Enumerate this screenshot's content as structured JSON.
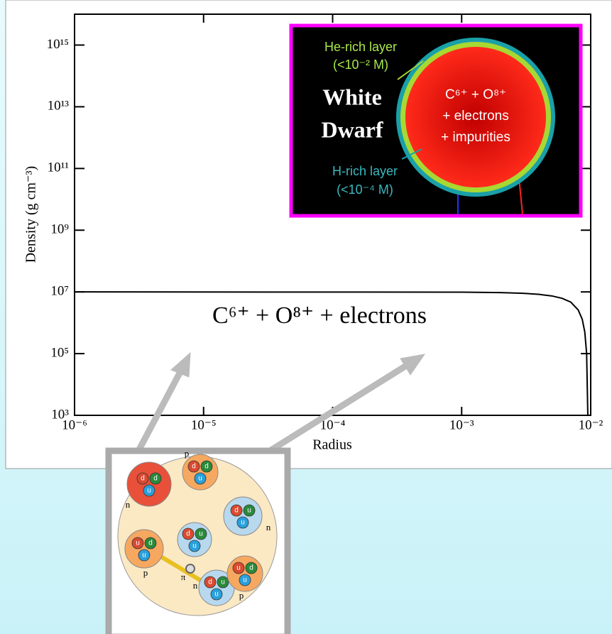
{
  "chart_data": {
    "type": "line",
    "xlabel": "Radius",
    "ylabel": "Density (g cm⁻³)",
    "xscale": "log",
    "yscale": "log",
    "xlim": [
      1e-06,
      0.01
    ],
    "ylim": [
      1000,
      10000000000000000
    ],
    "xticks": [
      {
        "value": 1e-06,
        "label": "10⁻⁶"
      },
      {
        "value": 1e-05,
        "label": "10⁻⁵"
      },
      {
        "value": 0.0001,
        "label": "10⁻⁴"
      },
      {
        "value": 0.001,
        "label": "10⁻³"
      },
      {
        "value": 0.01,
        "label": "10⁻²"
      }
    ],
    "yticks": [
      {
        "value": 1000,
        "label": "10³"
      },
      {
        "value": 100000,
        "label": "10⁵"
      },
      {
        "value": 10000000,
        "label": "10⁷"
      },
      {
        "value": 1000000000,
        "label": "10⁹"
      },
      {
        "value": 100000000000,
        "label": "10¹¹"
      },
      {
        "value": 10000000000000,
        "label": "10¹³"
      },
      {
        "value": 1000000000000000,
        "label": "10¹⁵"
      }
    ],
    "series": [
      {
        "color": "#000000",
        "x": [
          1e-06,
          0.001,
          0.002,
          0.003,
          0.004,
          0.005,
          0.006,
          0.007,
          0.008,
          0.0086,
          0.009,
          0.0093,
          0.0095
        ],
        "values": [
          10000000,
          9800000,
          9500000,
          9000000,
          8300000,
          7400000,
          6200000,
          4700000,
          2600000,
          1300000,
          500000,
          100000,
          1000
        ]
      }
    ],
    "annotation": "C⁶⁺ + O⁸⁺ + electrons"
  },
  "inset": {
    "he_layer": "He-rich layer",
    "he_mass": "(<10⁻² M)",
    "title_line1": "White",
    "title_line2": "Dwarf",
    "h_layer": "H-rich layer",
    "h_mass": "(<10⁻⁴ M)",
    "core_line1": "C⁶⁺ + O⁸⁺",
    "core_line2": "+ electrons",
    "core_line3": "+ impurities"
  },
  "nucleus": {
    "nucleons": [
      {
        "label": "n",
        "quarks": [
          "d",
          "d",
          "u"
        ]
      },
      {
        "label": "p",
        "quarks": [
          "d",
          "d",
          "u"
        ]
      },
      {
        "label": "n",
        "quarks": [
          "d",
          "u",
          "u"
        ]
      },
      {
        "quarks": [
          "d",
          "u",
          "u"
        ]
      },
      {
        "label": "p",
        "quarks": [
          "u",
          "d",
          "u"
        ]
      },
      {
        "label": "n",
        "quarks": [
          "d",
          "u",
          "u"
        ]
      },
      {
        "label": "p",
        "quarks": [
          "u",
          "d",
          "u"
        ]
      }
    ],
    "pion": "π"
  }
}
